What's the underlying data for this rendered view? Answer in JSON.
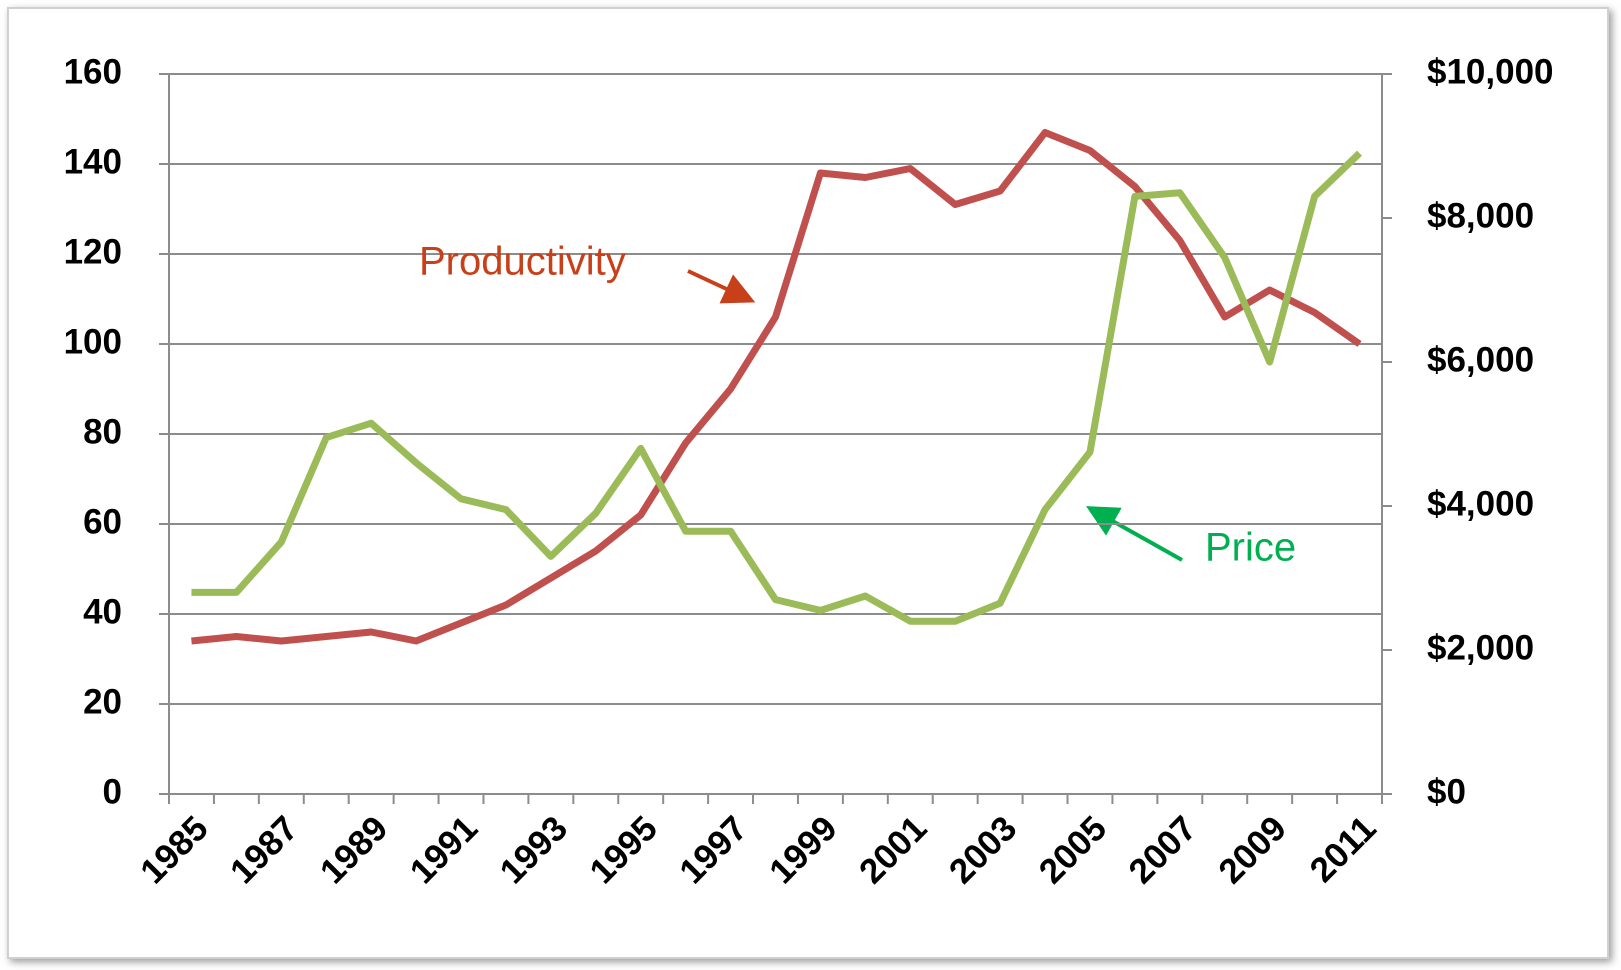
{
  "chart_data": {
    "type": "line",
    "categories": [
      "1985",
      null,
      "1987",
      null,
      "1989",
      null,
      "1991",
      null,
      "1993",
      null,
      "1995",
      null,
      "1997",
      null,
      "1999",
      null,
      "2001",
      null,
      "2003",
      null,
      "2005",
      null,
      "2007",
      null,
      "2009",
      null,
      "2011"
    ],
    "series": [
      {
        "name": "Productivity",
        "color": "#c0504d",
        "label_color": "#c8401a",
        "values": [
          34,
          35,
          34,
          35,
          36,
          34,
          38,
          42,
          48,
          54,
          62,
          78,
          90,
          106,
          138,
          137,
          139,
          131,
          134,
          147,
          143,
          135,
          123,
          106,
          112,
          107,
          100
        ]
      },
      {
        "name": "Price",
        "color": "#9bbb59",
        "label_color": "#00b050",
        "axis": "y2",
        "values": [
          2800,
          2800,
          3500,
          4950,
          5150,
          4600,
          4100,
          3950,
          3300,
          3900,
          4800,
          3650,
          3650,
          2700,
          2550,
          2750,
          2400,
          2400,
          2650,
          3950,
          4750,
          8300,
          8350,
          7450,
          6000,
          8300,
          8900
        ]
      }
    ],
    "ylim": [
      0,
      160
    ],
    "yticks": [
      0,
      20,
      40,
      60,
      80,
      100,
      120,
      140,
      160
    ],
    "y2lim": [
      0,
      10000
    ],
    "y2ticks": [
      {
        "value": 0,
        "label": "$0"
      },
      {
        "value": 2000,
        "label": "$2,000"
      },
      {
        "value": 4000,
        "label": "$4,000"
      },
      {
        "value": 6000,
        "label": "$6,000"
      },
      {
        "value": 8000,
        "label": "$8,000"
      },
      {
        "value": 10000,
        "label": "$10,000"
      }
    ],
    "grid": true
  }
}
